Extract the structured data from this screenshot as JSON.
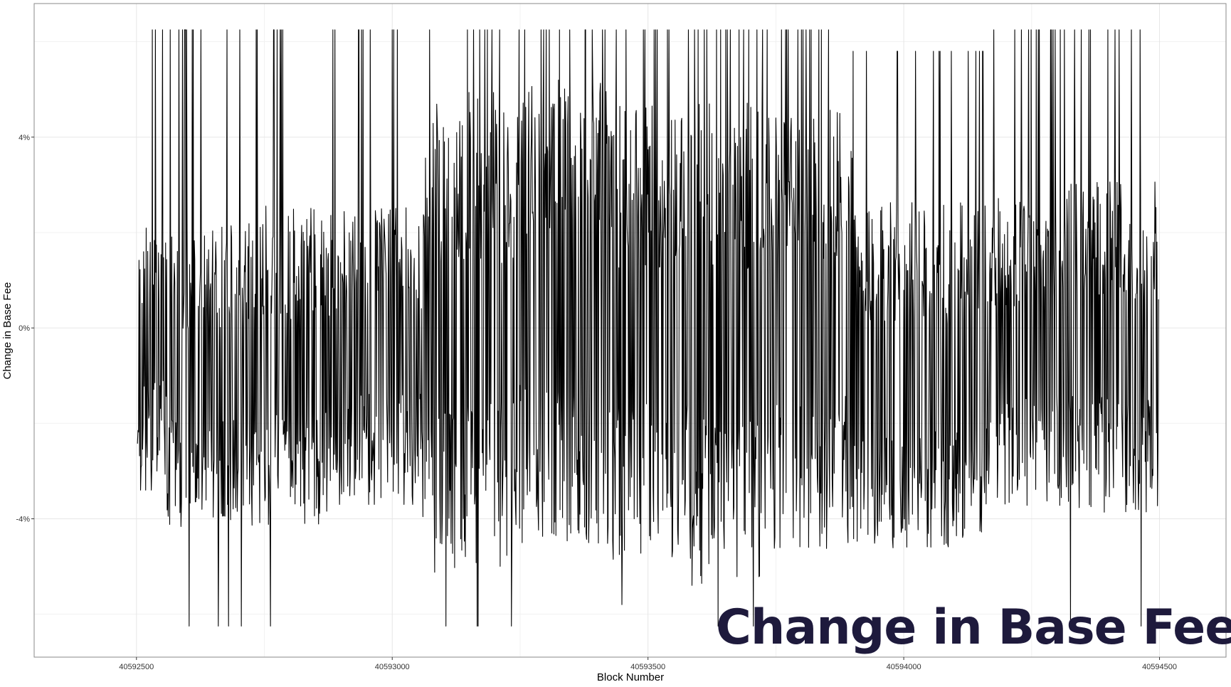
{
  "colors": {
    "line": "#000000",
    "grid": "#e6e6e6",
    "panel_border": "#8a8a8a",
    "overlay_title": "#1e1a3c",
    "background": "#ffffff"
  },
  "overlay": {
    "title": "Change in Base Fee"
  },
  "chart_data": {
    "type": "line",
    "title": "",
    "xlabel": "Block Number",
    "ylabel": "Change in Base Fee",
    "xlim": [
      40592300,
      40594630
    ],
    "ylim": [
      -6.9,
      6.8
    ],
    "x_ticks": [
      40592500,
      40593000,
      40593500,
      40594000,
      40594500
    ],
    "x_tick_labels": [
      "40592500",
      "40593000",
      "40593500",
      "40594000",
      "40594500"
    ],
    "y_ticks": [
      -4,
      0,
      4
    ],
    "y_tick_labels": [
      "-4%",
      "0%",
      "4%"
    ],
    "y_minor_ticks": [
      -6,
      -2,
      2,
      6
    ],
    "x_minor_ticks": [
      40592750,
      40593250,
      40593750,
      40594250
    ],
    "grid": true,
    "x_range": [
      40592502,
      40594498
    ],
    "y_clip": [
      -6.25,
      6.25
    ],
    "series": [
      {
        "name": "",
        "description_note": "Block-by-block percent change in base fee; values oscillate between roughly -6.25% and +6.25%",
        "segments": [
          {
            "from": 40592502,
            "to": 40592560,
            "center": -0.3,
            "spread": 2.0,
            "spike_high": 6.25,
            "spike_low": -3.4
          },
          {
            "from": 40592560,
            "to": 40592735,
            "center": -1.0,
            "spread": 2.3,
            "spike_high": 6.25,
            "spike_low": -6.25
          },
          {
            "from": 40592735,
            "to": 40592880,
            "center": -0.8,
            "spread": 2.4,
            "spike_high": 6.25,
            "spike_low": -6.25
          },
          {
            "from": 40592880,
            "to": 40593060,
            "center": -0.5,
            "spread": 2.2,
            "spike_high": 6.25,
            "spike_low": -3.7
          },
          {
            "from": 40593060,
            "to": 40593240,
            "center": -0.1,
            "spread": 3.6,
            "spike_high": 6.25,
            "spike_low": -6.25
          },
          {
            "from": 40593240,
            "to": 40593420,
            "center": 0.3,
            "spread": 3.5,
            "spike_high": 6.25,
            "spike_low": -4.3
          },
          {
            "from": 40593420,
            "to": 40593580,
            "center": -0.1,
            "spread": 3.4,
            "spike_high": 6.25,
            "spike_low": -5.8
          },
          {
            "from": 40593580,
            "to": 40593720,
            "center": -0.3,
            "spread": 3.7,
            "spike_high": 6.25,
            "spike_low": -6.25
          },
          {
            "from": 40593720,
            "to": 40593900,
            "center": 0.0,
            "spread": 3.4,
            "spike_high": 6.25,
            "spike_low": -4.2
          },
          {
            "from": 40593900,
            "to": 40594160,
            "center": -1.0,
            "spread": 2.6,
            "spike_high": 5.8,
            "spike_low": -4.2
          },
          {
            "from": 40594160,
            "to": 40594290,
            "center": -0.5,
            "spread": 2.3,
            "spike_high": 6.25,
            "spike_low": -6.25
          },
          {
            "from": 40594290,
            "to": 40594498,
            "center": -0.4,
            "spread": 2.5,
            "spike_high": 6.25,
            "spike_low": -6.25
          }
        ]
      }
    ]
  }
}
